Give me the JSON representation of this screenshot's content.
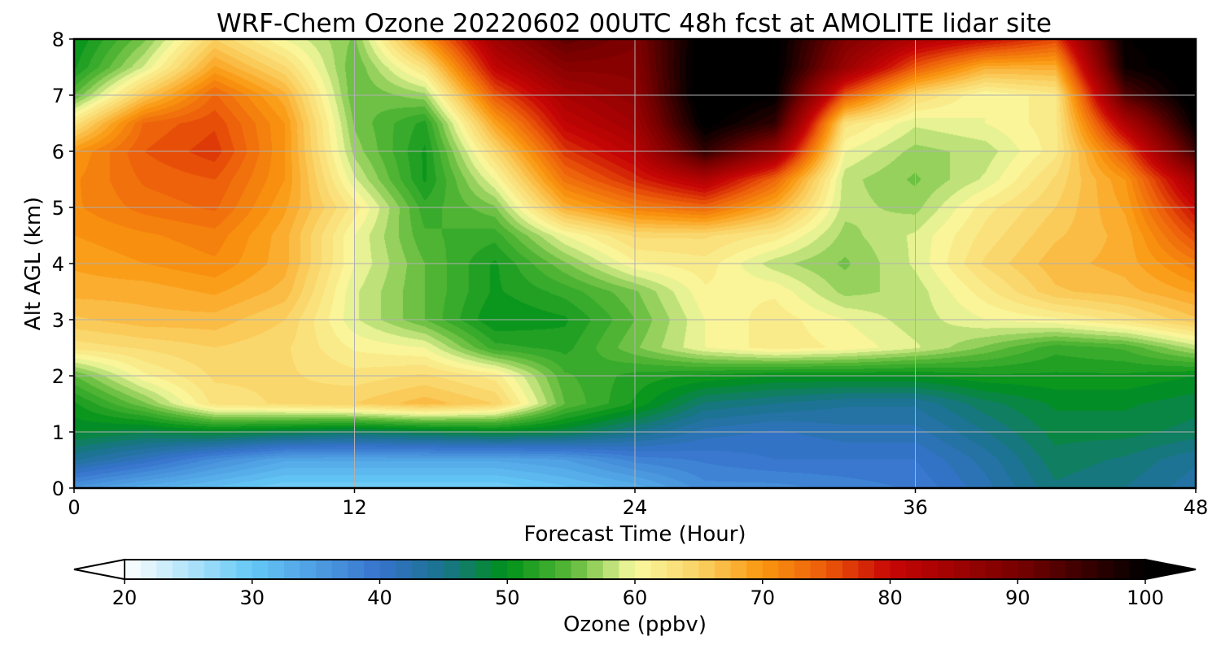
{
  "chart_data": {
    "type": "heatmap",
    "title": "WRF-Chem Ozone  20220602 00UTC 48h fcst at AMOLITE lidar site",
    "xlabel": "Forecast Time (Hour)",
    "ylabel": "Alt AGL (km)",
    "xlim": [
      0,
      48
    ],
    "ylim": [
      0,
      8
    ],
    "x_ticks": [
      "0",
      "12",
      "24",
      "36",
      "48"
    ],
    "y_ticks": [
      "0",
      "1",
      "2",
      "3",
      "4",
      "5",
      "6",
      "7",
      "8"
    ],
    "grid": true,
    "x": [
      0,
      3,
      6,
      9,
      12,
      15,
      18,
      21,
      24,
      27,
      30,
      33,
      36,
      39,
      42,
      45,
      48
    ],
    "y": [
      0,
      0.5,
      1,
      1.5,
      2,
      2.5,
      3,
      3.5,
      4,
      4.5,
      5,
      5.5,
      6,
      6.5,
      7,
      7.5,
      8
    ],
    "z": [
      [
        36,
        33,
        31,
        29,
        29,
        29,
        29,
        31,
        33,
        37,
        37,
        38,
        39,
        42,
        46,
        45,
        43
      ],
      [
        44,
        41,
        37,
        34,
        34,
        34,
        34,
        35,
        38,
        39,
        40,
        40,
        40,
        43,
        47,
        46,
        44
      ],
      [
        49,
        48,
        49,
        48,
        47,
        48,
        49,
        48,
        45,
        42,
        41,
        42,
        42,
        45,
        48,
        48,
        47
      ],
      [
        51,
        56,
        63,
        64,
        65,
        67,
        65,
        55,
        51,
        46,
        45,
        44,
        44,
        47,
        49,
        49,
        48
      ],
      [
        55,
        61,
        64,
        64,
        63,
        64,
        62,
        54,
        52,
        51,
        50,
        50,
        50,
        51,
        51,
        51,
        50
      ],
      [
        63,
        64,
        65,
        64,
        61,
        60,
        53,
        52,
        56,
        60,
        62,
        61,
        59,
        56,
        53,
        54,
        58
      ],
      [
        66,
        67,
        67,
        65,
        59,
        55,
        50,
        51,
        55,
        60,
        62,
        60,
        58,
        60,
        61,
        63,
        66
      ],
      [
        68,
        68,
        69,
        67,
        59,
        55,
        51,
        53,
        56,
        61,
        61,
        57,
        58,
        62,
        66,
        67,
        69
      ],
      [
        69,
        70,
        71,
        68,
        60,
        55,
        51,
        56,
        61,
        62,
        58,
        56,
        59,
        64,
        67,
        68,
        72
      ],
      [
        70,
        71,
        72,
        68,
        60,
        54,
        53,
        60,
        64,
        64,
        62,
        57,
        59,
        63,
        66,
        68,
        76
      ],
      [
        71,
        73,
        74,
        69,
        62,
        53,
        56,
        68,
        72,
        74,
        68,
        58,
        57,
        62,
        65,
        69,
        80
      ],
      [
        71,
        74,
        75,
        70,
        59,
        51,
        60,
        73,
        78,
        83,
        74,
        58,
        56,
        59,
        64,
        70,
        85
      ],
      [
        70,
        75,
        77,
        70,
        57,
        51,
        64,
        77,
        82,
        96,
        86,
        60,
        57,
        58,
        62,
        75,
        95
      ],
      [
        63,
        74,
        76,
        70,
        56,
        52,
        69,
        81,
        85,
        101,
        96,
        63,
        59,
        60,
        62,
        83,
        100
      ],
      [
        55,
        66,
        74,
        68,
        55,
        57,
        75,
        84,
        87,
        103,
        100,
        75,
        64,
        60,
        62,
        93,
        102
      ],
      [
        51,
        59,
        69,
        64,
        55,
        63,
        81,
        88,
        88,
        103,
        101,
        86,
        75,
        68,
        68,
        99,
        102
      ],
      [
        50,
        56,
        65,
        60,
        56,
        70,
        85,
        92,
        89,
        102,
        101,
        89,
        83,
        80,
        76,
        100,
        101
      ]
    ],
    "colorbar": {
      "label": "Ozone  (ppbv)",
      "min": 20,
      "max": 100,
      "extend": "both",
      "ticks": [
        "20",
        "30",
        "40",
        "50",
        "60",
        "70",
        "80",
        "90",
        "100"
      ]
    }
  }
}
